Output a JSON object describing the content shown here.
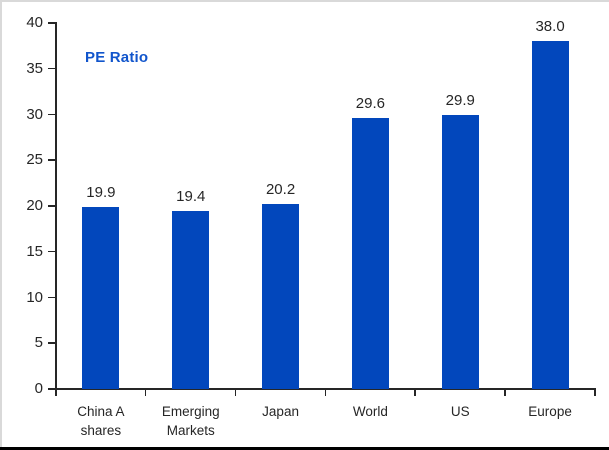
{
  "chart_data": {
    "type": "bar",
    "title": "PE Ratio",
    "categories": [
      "China A\nshares",
      "Emerging\nMarkets",
      "Japan",
      "World",
      "US",
      "Europe"
    ],
    "values": [
      19.9,
      19.4,
      20.2,
      29.6,
      29.9,
      38.0
    ],
    "value_labels": [
      "19.9",
      "19.4",
      "20.2",
      "29.6",
      "29.9",
      "38.0"
    ],
    "xlabel": "",
    "ylabel": "",
    "ylim": [
      0,
      40
    ],
    "yticks": [
      0,
      5,
      10,
      15,
      20,
      25,
      30,
      35,
      40
    ],
    "grid": false,
    "legend_position": "none",
    "bar_color": "#0247BC",
    "title_color": "#1155CC",
    "axis_color": "#262626"
  }
}
